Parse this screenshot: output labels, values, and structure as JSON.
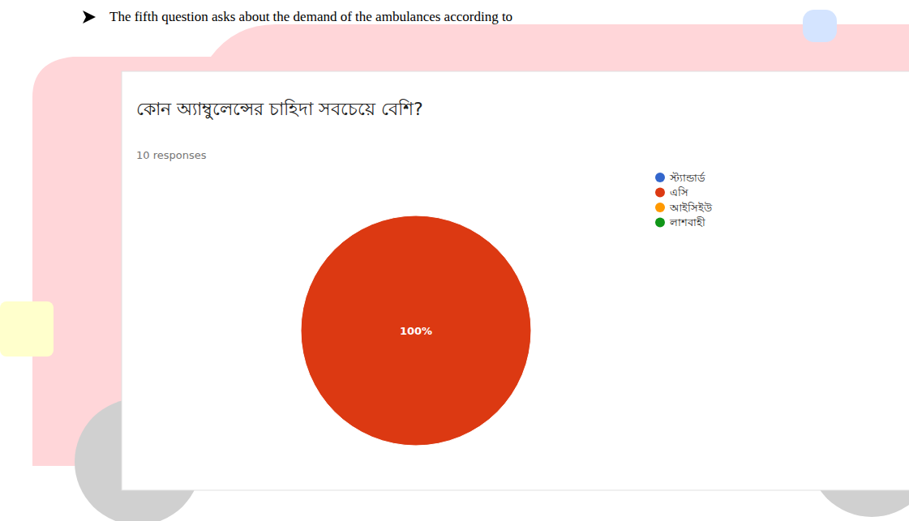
{
  "paragraph": "The fifth question asks about the demand of the ambulances according to",
  "chart_data": {
    "type": "pie",
    "title": "কোন অ্যাম্বুলেন্সের চাহিদা সবচেয়ে বেশি?",
    "subtitle": "10 responses",
    "categories": [
      "স্ট্যান্ডার্ড",
      "এসি",
      "আইসিইউ",
      "লাশবাহী"
    ],
    "values": [
      0,
      100,
      0,
      0
    ],
    "value_labels": [
      null,
      "100%",
      null,
      null
    ],
    "colors": [
      "#3366cc",
      "#dc3912",
      "#ff9900",
      "#109618"
    ],
    "data_labels": true,
    "legend": "right"
  }
}
